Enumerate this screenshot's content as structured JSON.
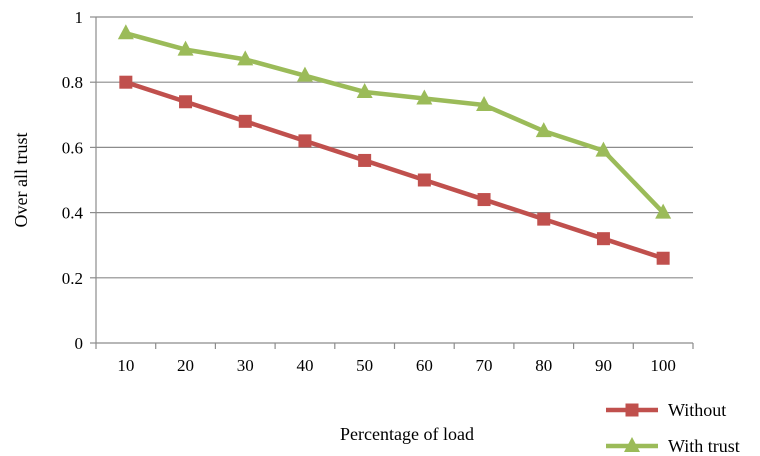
{
  "chart_data": {
    "type": "line",
    "title": "",
    "xlabel": "Percentage of load",
    "ylabel": "Over all trust",
    "categories": [
      "10",
      "20",
      "30",
      "40",
      "50",
      "60",
      "70",
      "80",
      "90",
      "100"
    ],
    "ylim": [
      0,
      1
    ],
    "yticks": [
      "0",
      "0.2",
      "0.4",
      "0.6",
      "0.8",
      "1"
    ],
    "grid": "horizontal",
    "legend_position": "bottom-right",
    "series": [
      {
        "name": "Without",
        "color": "#c0504d",
        "marker": "square",
        "values": [
          0.8,
          0.74,
          0.68,
          0.62,
          0.56,
          0.5,
          0.44,
          0.38,
          0.32,
          0.26
        ]
      },
      {
        "name": "With trust",
        "color": "#9bbb59",
        "marker": "triangle",
        "values": [
          0.95,
          0.9,
          0.87,
          0.82,
          0.77,
          0.75,
          0.73,
          0.65,
          0.59,
          0.4
        ]
      }
    ]
  }
}
